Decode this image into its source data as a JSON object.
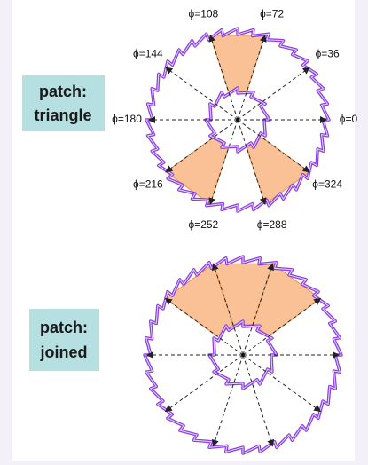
{
  "panels": [
    {
      "label": [
        "patch:",
        "triangle"
      ],
      "angle_labels": [
        "ϕ=0",
        "ϕ=36",
        "ϕ=72",
        "ϕ=108",
        "ϕ=144",
        "ϕ=180",
        "ϕ=216",
        "ϕ=252",
        "ϕ=288",
        "ϕ=324"
      ]
    },
    {
      "label": [
        "patch:",
        "joined"
      ]
    }
  ]
}
